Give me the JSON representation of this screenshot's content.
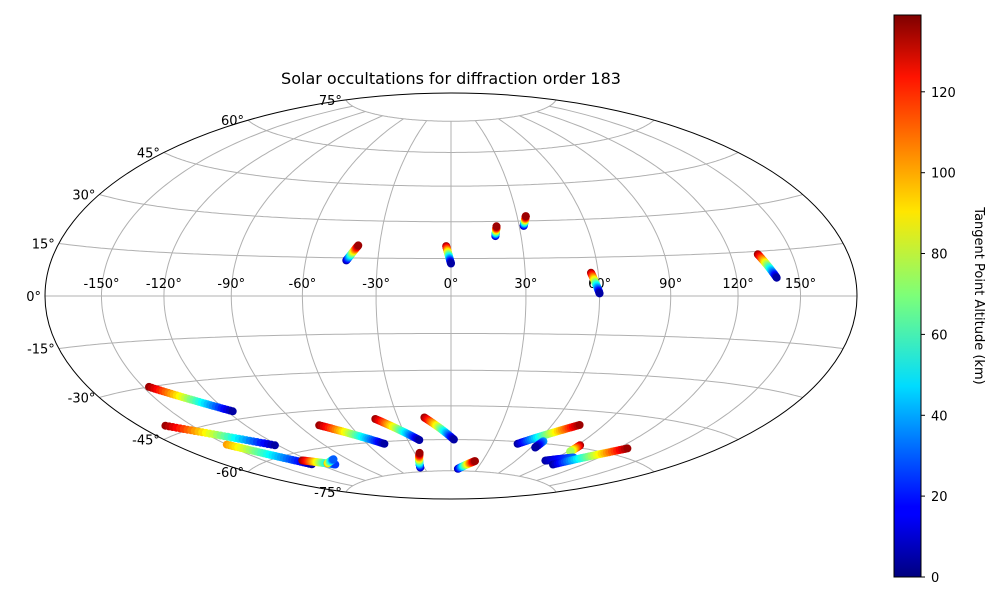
{
  "chart_data": {
    "type": "scatter",
    "projection": "hammer",
    "title": "Solar occultations for diffraction order 183",
    "lon_ticks": [
      "-150°",
      "-120°",
      "-90°",
      "-60°",
      "-30°",
      "0°",
      "30°",
      "60°",
      "90°",
      "120°",
      "150°"
    ],
    "lon_tick_values": [
      -150,
      -120,
      -90,
      -60,
      -30,
      0,
      30,
      60,
      90,
      120,
      150
    ],
    "lat_ticks": [
      "-75°",
      "-60°",
      "-45°",
      "-30°",
      "-15°",
      "0°",
      "15°",
      "30°",
      "45°",
      "60°",
      "75°"
    ],
    "lat_tick_values": [
      -75,
      -60,
      -45,
      -30,
      -15,
      0,
      15,
      30,
      45,
      60,
      75
    ],
    "grid": true,
    "colorbar": {
      "label": "Tangent Point Altitude (km)",
      "colormap": "jet",
      "range": [
        0,
        139
      ],
      "ticks": [
        "0",
        "20",
        "40",
        "60",
        "80",
        "100",
        "120"
      ],
      "tick_values": [
        0,
        20,
        40,
        60,
        80,
        100,
        120
      ]
    },
    "series": [
      {
        "lon_start": -43,
        "lat_start": 14,
        "lon_end": -39,
        "lat_end": 20,
        "alt_start": 5,
        "alt_end": 135
      },
      {
        "lon_start": -2,
        "lat_start": 20,
        "lon_end": 0,
        "lat_end": 13,
        "alt_start": 135,
        "alt_end": 5
      },
      {
        "lon_start": 19,
        "lat_start": 24,
        "lon_end": 20,
        "lat_end": 28,
        "alt_start": 5,
        "alt_end": 135
      },
      {
        "lon_start": 32,
        "lat_start": 28,
        "lon_end": 34,
        "lat_end": 32,
        "alt_start": 5,
        "alt_end": 135
      },
      {
        "lon_start": 57,
        "lat_start": 9,
        "lon_end": 60,
        "lat_end": 1,
        "alt_start": 135,
        "alt_end": 5
      },
      {
        "lon_start": 133,
        "lat_start": 14,
        "lon_end": 139,
        "lat_end": 6,
        "alt_start": 135,
        "alt_end": 5
      },
      {
        "lon_start": -147,
        "lat_start": -30,
        "lon_end": -117,
        "lat_end": -42,
        "alt_start": 135,
        "alt_end": 5
      },
      {
        "lon_start": -165,
        "lat_start": -42,
        "lon_end": -122,
        "lat_end": -56,
        "alt_start": 135,
        "alt_end": 5
      },
      {
        "lon_start": -150,
        "lat_start": -52,
        "lon_end": -125,
        "lat_end": -65,
        "alt_start": 100,
        "alt_end": 5
      },
      {
        "lon_start": -125,
        "lat_start": -63,
        "lon_end": -108,
        "lat_end": -67,
        "alt_start": 135,
        "alt_end": 25
      },
      {
        "lon_start": -112,
        "lat_start": -66,
        "lon_end": -101,
        "lat_end": -65,
        "alt_start": 100,
        "alt_end": 30
      },
      {
        "lon_start": -78,
        "lat_start": -51,
        "lon_end": -48,
        "lat_end": -61,
        "alt_start": 135,
        "alt_end": 5
      },
      {
        "lon_start": -43,
        "lat_start": -50,
        "lon_end": -22,
        "lat_end": -60,
        "alt_start": 135,
        "alt_end": 5
      },
      {
        "lon_start": -34,
        "lat_start": -73,
        "lon_end": -26,
        "lat_end": -66,
        "alt_start": 5,
        "alt_end": 135
      },
      {
        "lon_start": -15,
        "lat_start": -50,
        "lon_end": 2,
        "lat_end": -60,
        "alt_start": 135,
        "alt_end": 5
      },
      {
        "lon_start": 8,
        "lat_start": -74,
        "lon_end": 23,
        "lat_end": -70,
        "alt_start": 5,
        "alt_end": 135
      },
      {
        "lon_start": 48,
        "lat_start": -61,
        "lon_end": 76,
        "lat_end": -51,
        "alt_start": 5,
        "alt_end": 135
      },
      {
        "lon_start": 64,
        "lat_start": -59,
        "lon_end": 63,
        "lat_end": -62,
        "alt_start": 40,
        "alt_end": 5
      },
      {
        "lon_start": 92,
        "lat_start": -59,
        "lon_end": 92,
        "lat_end": -62,
        "alt_start": 135,
        "alt_end": 75
      },
      {
        "lon_start": 85,
        "lat_start": -67,
        "lon_end": 102,
        "lat_end": -64,
        "alt_start": 5,
        "alt_end": 30
      },
      {
        "lon_start": 97,
        "lat_start": -68,
        "lon_end": 126,
        "lat_end": -57,
        "alt_start": 5,
        "alt_end": 135
      }
    ]
  }
}
